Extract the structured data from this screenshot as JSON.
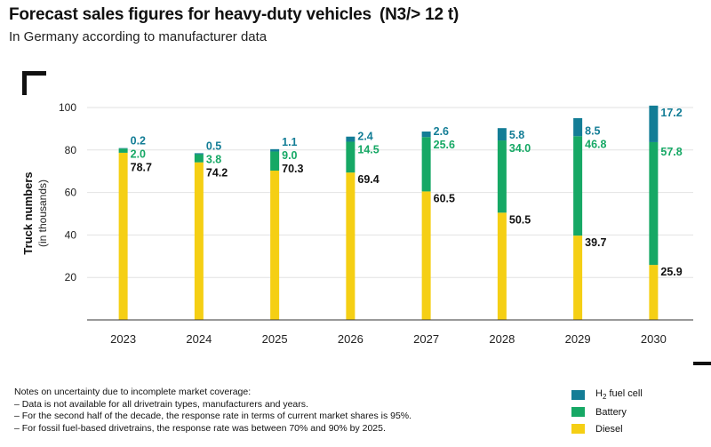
{
  "header": {
    "title": "Forecast sales figures for heavy-duty vehicles",
    "title_suffix": "(N3/> 12 t)",
    "subtitle": "In Germany according to manufacturer data"
  },
  "chart_data": {
    "type": "bar",
    "stacked": true,
    "title": "Forecast sales figures for heavy-duty vehicles (N3/> 12 t)",
    "subtitle": "In Germany according to manufacturer data",
    "xlabel": "",
    "ylabel": "Truck numbers",
    "ylabel_sub": "(in thousands)",
    "ylim": [
      0,
      100
    ],
    "yticks": [
      20,
      40,
      60,
      80,
      100
    ],
    "categories": [
      "2023",
      "2024",
      "2025",
      "2026",
      "2027",
      "2028",
      "2029",
      "2030"
    ],
    "series": [
      {
        "name": "Diesel",
        "color": "#f5cf14",
        "label_color": "#111111",
        "values": [
          78.7,
          74.2,
          70.3,
          69.4,
          60.5,
          50.5,
          39.7,
          25.9
        ]
      },
      {
        "name": "Battery",
        "color": "#16a865",
        "label_color": "#16a865",
        "values": [
          2.0,
          3.8,
          9.0,
          14.5,
          25.6,
          34.0,
          46.8,
          57.8
        ]
      },
      {
        "name": "H2 fuel cell",
        "color": "#137d96",
        "label_color": "#137d96",
        "values": [
          0.2,
          0.5,
          1.1,
          2.4,
          2.6,
          5.8,
          8.5,
          17.2
        ]
      }
    ],
    "value_labels": {
      "Diesel": [
        "78.7",
        "74.2",
        "70.3",
        "69.4",
        "60.5",
        "50.5",
        "39.7",
        "25.9"
      ],
      "Battery": [
        "2.0",
        "3.8",
        "9.0",
        "14.5",
        "25.6",
        "34.0",
        "46.8",
        "57.8"
      ],
      "H2 fuel cell": [
        "0.2",
        "0.5",
        "1.1",
        "2.4",
        "2.6",
        "5.8",
        "8.5",
        "17.2"
      ]
    }
  },
  "legend": {
    "h2_prefix": "H",
    "h2_sub": "2",
    "h2_suffix": " fuel cell",
    "battery": "Battery",
    "diesel": "Diesel",
    "colors": {
      "h2": "#137d96",
      "battery": "#16a865",
      "diesel": "#f5cf14"
    }
  },
  "notes": {
    "heading": "Notes on uncertainty due to incomplete market coverage:",
    "items": [
      "– Data is not available for all drivetrain types, manufacturers and years.",
      "– For the second half of the decade, the response rate in terms of current market shares is 95%.",
      "– For fossil fuel-based drivetrains, the response rate was between 70% and 90% by 2025."
    ]
  }
}
